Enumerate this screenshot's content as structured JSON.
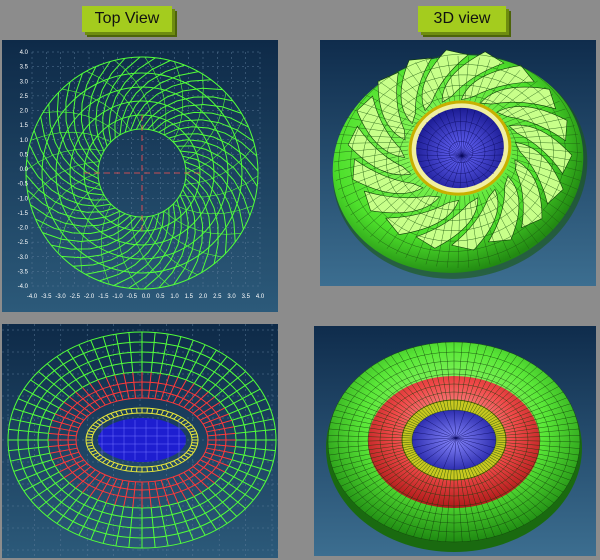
{
  "headers": {
    "top_view": "Top View",
    "view_3d": "3D view"
  },
  "axis_ticks": {
    "y": [
      "4.0",
      "3.5",
      "3.0",
      "2.5",
      "2.0",
      "1.5",
      "1.0",
      "0.5",
      "0.0",
      "-0.5",
      "-1.0",
      "-1.5",
      "-2.0",
      "-2.5",
      "-3.0",
      "-3.5",
      "-4.0"
    ],
    "x": [
      "-4.0",
      "-3.5",
      "-3.0",
      "-2.5",
      "-2.0",
      "-1.5",
      "-1.0",
      "-0.5",
      "0.0",
      "0.5",
      "1.0",
      "1.5",
      "2.0",
      "2.5",
      "3.0",
      "3.5",
      "4.0"
    ]
  },
  "colors": {
    "background": "#8c8c8c",
    "header": "#a4cc1e",
    "panel_bg_top": "#0e2a48",
    "panel_bg_bottom": "#2c5a7a",
    "mesh_green": "#52ff3a",
    "mesh_red": "#ff3a3a",
    "mesh_yellow": "#e8e83a",
    "core_blue": "#2a2ad8"
  },
  "icons": [
    "torus-wireframe-icon",
    "torus-3d-render-icon",
    "oval-wireframe-icon",
    "oval-3d-render-icon"
  ]
}
